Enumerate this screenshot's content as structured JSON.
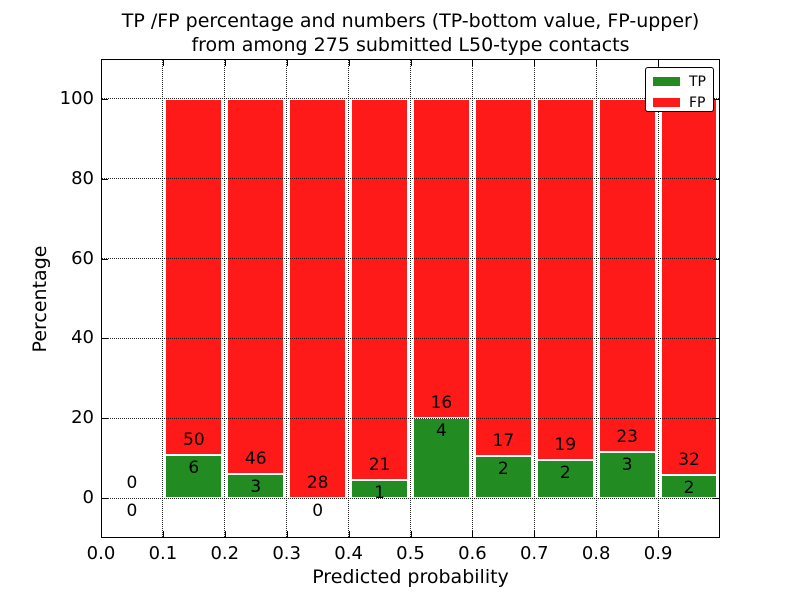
{
  "figure": {
    "title_line1": "TP /FP percentage and numbers (TP-bottom value, FP-upper)",
    "title_line2": "from among 275 submitted L50-type contacts",
    "xlabel": "Predicted probability",
    "ylabel": "Percentage"
  },
  "legend": {
    "position": "upper right",
    "items": [
      {
        "label": "TP",
        "color": "#228b22"
      },
      {
        "label": "FP",
        "color": "#ff1a1a"
      }
    ]
  },
  "colors": {
    "tp": "#228b22",
    "fp": "#ff1a1a",
    "bar_edge": "#ffffff",
    "grid": "#000000",
    "background": "#ffffff"
  },
  "chart_data": {
    "type": "bar",
    "stacked": true,
    "title": "TP /FP percentage and numbers (TP-bottom value, FP-upper) from among 275 submitted L50-type contacts",
    "xlabel": "Predicted probability",
    "ylabel": "Percentage",
    "total_contacts": 275,
    "xlim": [
      0.0,
      1.0
    ],
    "ylim": [
      -10,
      110
    ],
    "x_ticks": [
      0.0,
      0.1,
      0.2,
      0.3,
      0.4,
      0.5,
      0.6,
      0.7,
      0.8,
      0.9
    ],
    "x_tick_labels": [
      "0.0",
      "0.1",
      "0.2",
      "0.3",
      "0.4",
      "0.5",
      "0.6",
      "0.7",
      "0.8",
      "0.9"
    ],
    "y_ticks": [
      0,
      20,
      40,
      60,
      80,
      100
    ],
    "y_tick_labels": [
      "0",
      "20",
      "40",
      "60",
      "80",
      "100"
    ],
    "grid": true,
    "legend_position": "upper right",
    "series": [
      {
        "name": "TP",
        "color": "#228b22",
        "counts": [
          0,
          6,
          3,
          0,
          1,
          4,
          2,
          2,
          3,
          2
        ]
      },
      {
        "name": "FP",
        "color": "#ff1a1a",
        "counts": [
          0,
          50,
          46,
          28,
          21,
          16,
          17,
          19,
          23,
          32
        ]
      }
    ],
    "bins": [
      {
        "range": [
          0.0,
          0.1
        ],
        "tp_count": 0,
        "fp_count": 0,
        "tp_pct": 0,
        "fp_pct": 0
      },
      {
        "range": [
          0.1,
          0.2
        ],
        "tp_count": 6,
        "fp_count": 50,
        "tp_pct": 10.714,
        "fp_pct": 89.286
      },
      {
        "range": [
          0.2,
          0.3
        ],
        "tp_count": 3,
        "fp_count": 46,
        "tp_pct": 6.122,
        "fp_pct": 93.878
      },
      {
        "range": [
          0.3,
          0.4
        ],
        "tp_count": 0,
        "fp_count": 28,
        "tp_pct": 0,
        "fp_pct": 100
      },
      {
        "range": [
          0.4,
          0.5
        ],
        "tp_count": 1,
        "fp_count": 21,
        "tp_pct": 4.545,
        "fp_pct": 95.455
      },
      {
        "range": [
          0.5,
          0.6
        ],
        "tp_count": 4,
        "fp_count": 16,
        "tp_pct": 20,
        "fp_pct": 80
      },
      {
        "range": [
          0.6,
          0.7
        ],
        "tp_count": 2,
        "fp_count": 17,
        "tp_pct": 10.526,
        "fp_pct": 89.474
      },
      {
        "range": [
          0.7,
          0.8
        ],
        "tp_count": 2,
        "fp_count": 19,
        "tp_pct": 9.524,
        "fp_pct": 90.476
      },
      {
        "range": [
          0.8,
          0.9
        ],
        "tp_count": 3,
        "fp_count": 23,
        "tp_pct": 11.538,
        "fp_pct": 88.462
      },
      {
        "range": [
          0.9,
          1.0
        ],
        "tp_count": 2,
        "fp_count": 32,
        "tp_pct": 5.882,
        "fp_pct": 94.118
      }
    ]
  }
}
